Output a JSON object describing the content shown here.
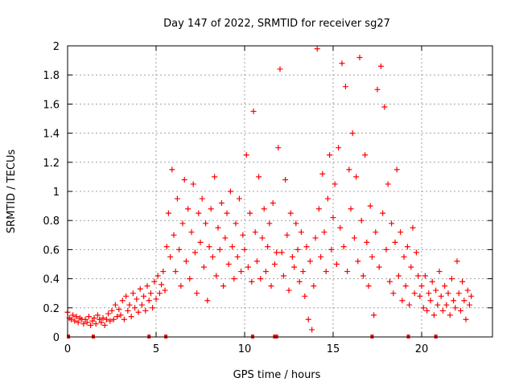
{
  "chart_data": {
    "type": "scatter",
    "title": "Day 147 of 2022, SRMTID for receiver sg27",
    "xlabel": "GPS time / hours",
    "ylabel": "SRMTID / TECUs",
    "xlim": [
      0,
      24
    ],
    "ylim": [
      0,
      2
    ],
    "x_ticks": [
      0,
      5,
      10,
      15,
      20
    ],
    "x_tick_labels": [
      "0",
      "5",
      "10",
      "15",
      "20"
    ],
    "y_ticks": [
      0,
      0.2,
      0.4,
      0.6,
      0.8,
      1,
      1.2,
      1.4,
      1.6,
      1.8,
      2
    ],
    "y_tick_labels": [
      "0",
      "0.2",
      "0.4",
      "0.6",
      "0.8",
      "1",
      "1.2",
      "1.4",
      "1.6",
      "1.8",
      "2"
    ],
    "grid": true,
    "marker": "+",
    "series": [
      {
        "name": "SRMTID",
        "color": "#ff0000",
        "points": [
          [
            0.0,
            0.17
          ],
          [
            0.1,
            0.13
          ],
          [
            0.2,
            0.12
          ],
          [
            0.3,
            0.15
          ],
          [
            0.4,
            0.11
          ],
          [
            0.5,
            0.14
          ],
          [
            0.6,
            0.1
          ],
          [
            0.7,
            0.13
          ],
          [
            0.8,
            0.12
          ],
          [
            0.9,
            0.09
          ],
          [
            1.0,
            0.12
          ],
          [
            1.1,
            0.1
          ],
          [
            1.2,
            0.14
          ],
          [
            1.3,
            0.08
          ],
          [
            1.4,
            0.11
          ],
          [
            1.5,
            0.13
          ],
          [
            1.6,
            0.09
          ],
          [
            1.7,
            0.15
          ],
          [
            1.8,
            0.12
          ],
          [
            1.9,
            0.1
          ],
          [
            2.0,
            0.13
          ],
          [
            2.1,
            0.08
          ],
          [
            2.2,
            0.12
          ],
          [
            2.3,
            0.16
          ],
          [
            2.4,
            0.11
          ],
          [
            2.5,
            0.18
          ],
          [
            2.6,
            0.12
          ],
          [
            2.7,
            0.22
          ],
          [
            2.8,
            0.14
          ],
          [
            2.9,
            0.19
          ],
          [
            3.0,
            0.15
          ],
          [
            3.1,
            0.25
          ],
          [
            3.2,
            0.12
          ],
          [
            3.3,
            0.28
          ],
          [
            3.4,
            0.18
          ],
          [
            3.5,
            0.22
          ],
          [
            3.6,
            0.14
          ],
          [
            3.7,
            0.3
          ],
          [
            3.8,
            0.2
          ],
          [
            3.9,
            0.26
          ],
          [
            4.0,
            0.17
          ],
          [
            4.1,
            0.33
          ],
          [
            4.2,
            0.22
          ],
          [
            4.3,
            0.28
          ],
          [
            4.4,
            0.18
          ],
          [
            4.5,
            0.35
          ],
          [
            4.6,
            0.25
          ],
          [
            4.7,
            0.3
          ],
          [
            4.8,
            0.2
          ],
          [
            4.9,
            0.38
          ],
          [
            5.0,
            0.26
          ],
          [
            5.1,
            0.42
          ],
          [
            5.2,
            0.3
          ],
          [
            5.3,
            0.36
          ],
          [
            5.4,
            0.45
          ],
          [
            5.5,
            0.32
          ],
          [
            5.6,
            0.62
          ],
          [
            5.7,
            0.85
          ],
          [
            5.8,
            0.55
          ],
          [
            5.9,
            1.15
          ],
          [
            6.0,
            0.7
          ],
          [
            6.1,
            0.45
          ],
          [
            6.2,
            0.95
          ],
          [
            6.3,
            0.6
          ],
          [
            6.4,
            0.35
          ],
          [
            6.5,
            0.78
          ],
          [
            6.6,
            1.08
          ],
          [
            6.7,
            0.52
          ],
          [
            6.8,
            0.88
          ],
          [
            6.9,
            0.4
          ],
          [
            7.0,
            0.72
          ],
          [
            7.1,
            1.05
          ],
          [
            7.2,
            0.58
          ],
          [
            7.3,
            0.3
          ],
          [
            7.4,
            0.85
          ],
          [
            7.5,
            0.65
          ],
          [
            7.6,
            0.95
          ],
          [
            7.7,
            0.48
          ],
          [
            7.8,
            0.78
          ],
          [
            7.9,
            0.25
          ],
          [
            8.0,
            0.62
          ],
          [
            8.1,
            0.88
          ],
          [
            8.2,
            0.55
          ],
          [
            8.3,
            1.1
          ],
          [
            8.4,
            0.42
          ],
          [
            8.5,
            0.75
          ],
          [
            8.6,
            0.6
          ],
          [
            8.7,
            0.92
          ],
          [
            8.8,
            0.35
          ],
          [
            8.9,
            0.68
          ],
          [
            9.0,
            0.85
          ],
          [
            9.1,
            0.5
          ],
          [
            9.2,
            1.0
          ],
          [
            9.3,
            0.62
          ],
          [
            9.4,
            0.4
          ],
          [
            9.5,
            0.78
          ],
          [
            9.6,
            0.55
          ],
          [
            9.7,
            0.95
          ],
          [
            9.8,
            0.45
          ],
          [
            9.9,
            0.7
          ],
          [
            10.0,
            0.6
          ],
          [
            10.1,
            1.25
          ],
          [
            10.2,
            0.48
          ],
          [
            10.3,
            0.85
          ],
          [
            10.4,
            0.38
          ],
          [
            10.5,
            1.55
          ],
          [
            10.6,
            0.72
          ],
          [
            10.7,
            0.52
          ],
          [
            10.8,
            1.1
          ],
          [
            10.9,
            0.4
          ],
          [
            11.0,
            0.68
          ],
          [
            11.1,
            0.88
          ],
          [
            11.2,
            0.45
          ],
          [
            11.3,
            0.62
          ],
          [
            11.4,
            0.78
          ],
          [
            11.5,
            0.35
          ],
          [
            11.6,
            0.92
          ],
          [
            11.7,
            0.5
          ],
          [
            11.8,
            0.58
          ],
          [
            11.9,
            1.3
          ],
          [
            12.0,
            1.84
          ],
          [
            12.1,
            0.58
          ],
          [
            12.2,
            0.42
          ],
          [
            12.3,
            1.08
          ],
          [
            12.4,
            0.7
          ],
          [
            12.5,
            0.32
          ],
          [
            12.6,
            0.85
          ],
          [
            12.7,
            0.55
          ],
          [
            12.8,
            0.48
          ],
          [
            12.9,
            0.78
          ],
          [
            13.0,
            0.6
          ],
          [
            13.1,
            0.38
          ],
          [
            13.2,
            0.72
          ],
          [
            13.3,
            0.45
          ],
          [
            13.4,
            0.28
          ],
          [
            13.5,
            0.62
          ],
          [
            13.6,
            0.12
          ],
          [
            13.7,
            0.52
          ],
          [
            13.8,
            0.05
          ],
          [
            13.9,
            0.35
          ],
          [
            14.0,
            0.68
          ],
          [
            14.1,
            1.98
          ],
          [
            14.2,
            0.88
          ],
          [
            14.3,
            0.55
          ],
          [
            14.4,
            1.12
          ],
          [
            14.5,
            0.72
          ],
          [
            14.6,
            0.45
          ],
          [
            14.7,
            0.95
          ],
          [
            14.8,
            1.25
          ],
          [
            14.9,
            0.6
          ],
          [
            15.0,
            0.82
          ],
          [
            15.1,
            1.05
          ],
          [
            15.2,
            0.5
          ],
          [
            15.3,
            1.3
          ],
          [
            15.4,
            0.75
          ],
          [
            15.5,
            1.88
          ],
          [
            15.6,
            0.62
          ],
          [
            15.7,
            1.72
          ],
          [
            15.8,
            0.45
          ],
          [
            15.9,
            1.15
          ],
          [
            16.0,
            0.88
          ],
          [
            16.1,
            1.4
          ],
          [
            16.2,
            0.68
          ],
          [
            16.3,
            1.1
          ],
          [
            16.4,
            0.52
          ],
          [
            16.5,
            1.92
          ],
          [
            16.6,
            0.8
          ],
          [
            16.7,
            0.42
          ],
          [
            16.8,
            1.25
          ],
          [
            16.9,
            0.65
          ],
          [
            17.0,
            0.35
          ],
          [
            17.1,
            0.9
          ],
          [
            17.2,
            0.55
          ],
          [
            17.3,
            0.15
          ],
          [
            17.4,
            0.72
          ],
          [
            17.5,
            1.7
          ],
          [
            17.6,
            0.48
          ],
          [
            17.7,
            1.86
          ],
          [
            17.8,
            0.85
          ],
          [
            17.9,
            1.58
          ],
          [
            18.0,
            0.6
          ],
          [
            18.1,
            1.05
          ],
          [
            18.2,
            0.38
          ],
          [
            18.3,
            0.78
          ],
          [
            18.4,
            0.3
          ],
          [
            18.5,
            0.65
          ],
          [
            18.6,
            1.15
          ],
          [
            18.7,
            0.42
          ],
          [
            18.8,
            0.72
          ],
          [
            18.9,
            0.25
          ],
          [
            19.0,
            0.55
          ],
          [
            19.1,
            0.35
          ],
          [
            19.2,
            0.62
          ],
          [
            19.3,
            0.22
          ],
          [
            19.4,
            0.48
          ],
          [
            19.5,
            0.75
          ],
          [
            19.6,
            0.3
          ],
          [
            19.7,
            0.58
          ],
          [
            19.8,
            0.42
          ],
          [
            19.9,
            0.28
          ],
          [
            20.0,
            0.35
          ],
          [
            20.1,
            0.2
          ],
          [
            20.2,
            0.42
          ],
          [
            20.3,
            0.18
          ],
          [
            20.4,
            0.3
          ],
          [
            20.5,
            0.25
          ],
          [
            20.6,
            0.38
          ],
          [
            20.7,
            0.15
          ],
          [
            20.8,
            0.32
          ],
          [
            20.9,
            0.22
          ],
          [
            21.0,
            0.45
          ],
          [
            21.1,
            0.28
          ],
          [
            21.2,
            0.18
          ],
          [
            21.3,
            0.35
          ],
          [
            21.4,
            0.22
          ],
          [
            21.5,
            0.3
          ],
          [
            21.6,
            0.15
          ],
          [
            21.7,
            0.4
          ],
          [
            21.8,
            0.25
          ],
          [
            21.9,
            0.2
          ],
          [
            22.0,
            0.52
          ],
          [
            22.1,
            0.3
          ],
          [
            22.2,
            0.18
          ],
          [
            22.3,
            0.38
          ],
          [
            22.4,
            0.25
          ],
          [
            22.5,
            0.12
          ],
          [
            22.6,
            0.32
          ],
          [
            22.7,
            0.22
          ],
          [
            22.8,
            0.28
          ]
        ]
      }
    ],
    "zero_marks_x": [
      0.05,
      1.45,
      4.6,
      5.55,
      10.45,
      11.7,
      11.8,
      17.2,
      19.25,
      20.8
    ]
  }
}
